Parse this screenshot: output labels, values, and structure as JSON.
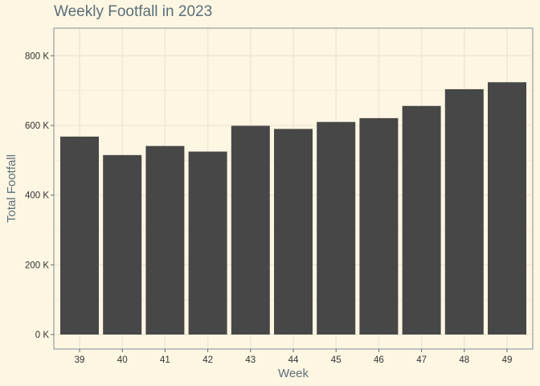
{
  "chart_data": {
    "type": "bar",
    "title": "Weekly Footfall in 2023",
    "xlabel": "Week",
    "ylabel": "Total Footfall",
    "categories": [
      "39",
      "40",
      "41",
      "42",
      "43",
      "44",
      "45",
      "46",
      "47",
      "48",
      "49"
    ],
    "values": [
      568000,
      515000,
      541000,
      525000,
      599000,
      590000,
      610000,
      621000,
      656000,
      704000,
      724000
    ],
    "ylim": [
      0,
      840000
    ],
    "yticks": [
      0,
      200000,
      400000,
      600000,
      800000
    ],
    "ytick_labels": [
      "0 K",
      "200 K",
      "400 K",
      "600 K",
      "800 K"
    ],
    "grid": true,
    "colors": {
      "background": "#fdf6e3",
      "bar": "#474747",
      "grid": "#eee8d5",
      "axis": "#93a1a1",
      "title": "#5b6f7a"
    }
  }
}
